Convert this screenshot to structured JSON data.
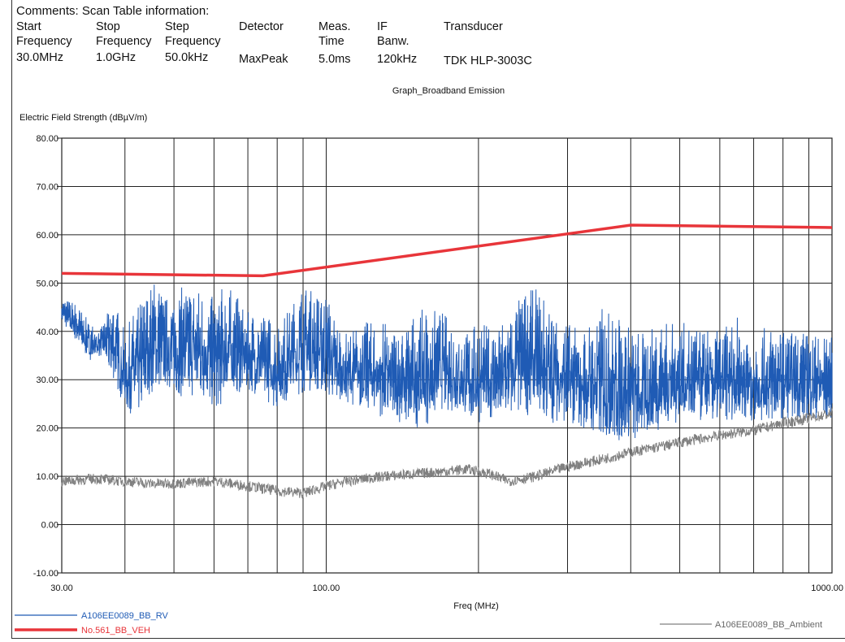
{
  "comments_label": "Comments: Scan Table information:",
  "scan_table": [
    {
      "header": [
        "Start",
        "Frequency"
      ],
      "value": "30.0MHz"
    },
    {
      "header": [
        "Stop",
        "Frequency"
      ],
      "value": "1.0GHz"
    },
    {
      "header": [
        "Step",
        "Frequency"
      ],
      "value": "50.0kHz"
    },
    {
      "header": [
        "Detector"
      ],
      "value": "MaxPeak"
    },
    {
      "header": [
        "Meas.",
        "Time"
      ],
      "value": "5.0ms"
    },
    {
      "header": [
        "IF",
        "Banw."
      ],
      "value": "120kHz"
    },
    {
      "header": [
        "Transducer"
      ],
      "value": "TDK HLP-3003C"
    }
  ],
  "chart_data": {
    "type": "line",
    "title": "Graph_Broadband Emission",
    "ylabel": "Electric Field Strength (dBµV/m)",
    "xlabel": "Freq (MHz)",
    "x_scale": "log",
    "xlim": [
      30,
      1000
    ],
    "ylim": [
      -10,
      80
    ],
    "y_ticks": [
      "80.00",
      "70.00",
      "60.00",
      "50.00",
      "40.00",
      "30.00",
      "20.00",
      "10.00",
      "0.00",
      "-10.00"
    ],
    "x_ticks": [
      {
        "value": 30,
        "label": "30.00"
      },
      {
        "value": 100,
        "label": "100.00"
      },
      {
        "value": 1000,
        "label": "1000.00"
      }
    ],
    "grid": true,
    "series": [
      {
        "name": "A106EE0089_BB_RV",
        "color": "#1f5bb5",
        "style": "noisy-band",
        "envelope_x": [
          30,
          32,
          34,
          36,
          38,
          40,
          42,
          44,
          46,
          48,
          50,
          53,
          56,
          60,
          63,
          66,
          70,
          75,
          80,
          85,
          90,
          95,
          100,
          105,
          110,
          120,
          130,
          140,
          150,
          160,
          170,
          180,
          190,
          200,
          215,
          230,
          245,
          260,
          280,
          300,
          320,
          350,
          380,
          400,
          430,
          460,
          500,
          550,
          600,
          650,
          700,
          750,
          800,
          850,
          900,
          950,
          1000
        ],
        "envelope_low": [
          42,
          38,
          34,
          35,
          30,
          24,
          22,
          26,
          28,
          29,
          27,
          26,
          27,
          24,
          25,
          27,
          28,
          26,
          24,
          26,
          27,
          28,
          27,
          25,
          25,
          24,
          22,
          21,
          20,
          21,
          24,
          23,
          22,
          21,
          22,
          22,
          23,
          22,
          21,
          21,
          20,
          18,
          17,
          17,
          18,
          20,
          21,
          21,
          21,
          22,
          21,
          21,
          22,
          22,
          22,
          22,
          22
        ],
        "envelope_high": [
          47,
          46,
          42,
          41,
          47,
          40,
          45,
          48,
          51,
          47,
          48,
          50,
          49,
          47,
          50,
          48,
          44,
          44,
          42,
          45,
          50,
          48,
          48,
          42,
          40,
          42,
          42,
          40,
          44,
          45,
          44,
          42,
          40,
          42,
          41,
          44,
          48,
          49,
          45,
          42,
          40,
          45,
          43,
          41,
          40,
          42,
          42,
          41,
          40,
          43,
          40,
          41,
          40,
          40,
          40,
          39,
          39
        ]
      },
      {
        "name": "No.561_BB_VEH",
        "color": "#e8353a",
        "style": "line",
        "x": [
          30,
          75,
          400,
          1000
        ],
        "y": [
          52,
          51.5,
          62,
          61.5
        ]
      },
      {
        "name": "A106EE0089_BB_Ambient",
        "color": "#808080",
        "style": "noisy-line",
        "x": [
          30,
          35,
          40,
          45,
          50,
          60,
          70,
          80,
          90,
          100,
          110,
          130,
          150,
          170,
          190,
          210,
          230,
          260,
          300,
          350,
          400,
          450,
          500,
          600,
          700,
          800,
          900,
          1000
        ],
        "y": [
          9,
          9.5,
          9,
          8.5,
          8.5,
          9,
          8,
          7,
          6.5,
          8,
          9,
          10,
          10.5,
          11,
          11.5,
          10.5,
          9,
          10,
          12,
          13.5,
          15,
          16,
          17,
          18.5,
          19.5,
          21,
          22,
          23
        ]
      }
    ]
  }
}
